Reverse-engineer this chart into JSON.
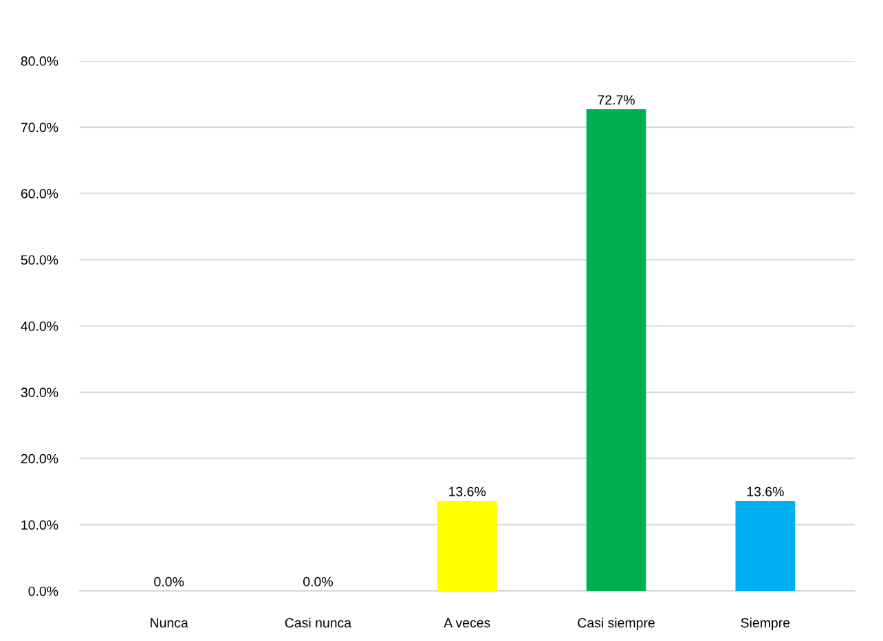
{
  "chart_data": {
    "type": "bar",
    "categories": [
      "Nunca",
      "Casi nunca",
      "A veces",
      "Casi siempre",
      "Siempre"
    ],
    "values": [
      0.0,
      0.0,
      13.6,
      72.7,
      13.6
    ],
    "colors": [
      "#c00000",
      "#bf9000",
      "#ffff00",
      "#00b050",
      "#00b0f0"
    ],
    "value_labels": [
      "0.0%",
      "0.0%",
      "13.6%",
      "72.7%",
      "13.6%"
    ],
    "ylim": [
      0,
      80
    ],
    "yticks": [
      {
        "value": 0,
        "label": "0.0%"
      },
      {
        "value": 10,
        "label": "10.0%"
      },
      {
        "value": 20,
        "label": "20.0%"
      },
      {
        "value": 30,
        "label": "30.0%"
      },
      {
        "value": 40,
        "label": "40.0%"
      },
      {
        "value": 50,
        "label": "50.0%"
      },
      {
        "value": 60,
        "label": "60.0%"
      },
      {
        "value": 70,
        "label": "70.0%"
      },
      {
        "value": 80,
        "label": "80.0%"
      }
    ],
    "grid": "y",
    "legend": false
  }
}
